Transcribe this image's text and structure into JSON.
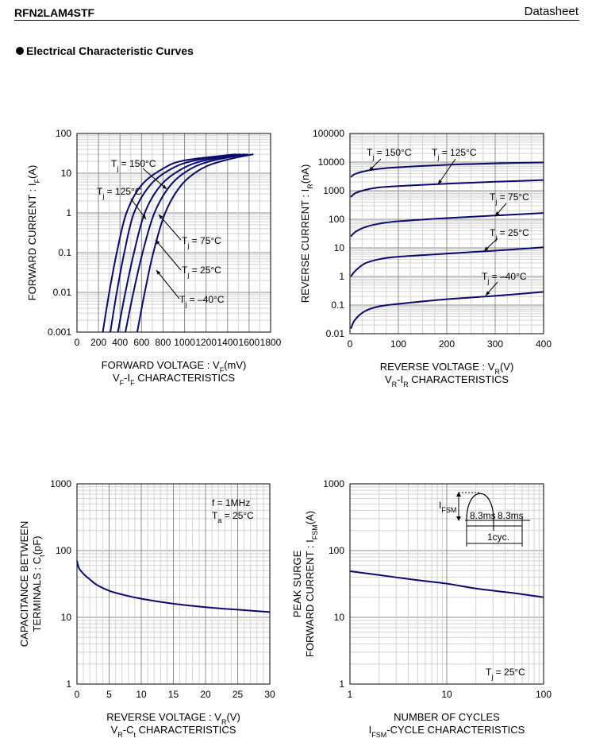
{
  "header": {
    "part_number": "RFN2LAM4STF",
    "doc_type": "Datasheet"
  },
  "section_title": "Electrical Characteristic Curves",
  "chart_data": [
    {
      "id": "vf-if",
      "type": "line",
      "title": "VF-IF CHARACTERISTICS",
      "xlabel": "FORWARD VOLTAGE : VF(mV)",
      "ylabel": "FORWARD CURRENT : IF(A)",
      "x_scale": "linear",
      "y_scale": "log",
      "xlim": [
        0,
        1800
      ],
      "ylim": [
        0.001,
        100
      ],
      "x_ticks": [
        "0",
        "200",
        "400",
        "600",
        "800",
        "1000",
        "1200",
        "1400",
        "1600",
        "1800"
      ],
      "y_ticks": [
        "0.001",
        "0.01",
        "0.1",
        "1",
        "10",
        "100"
      ],
      "grid": true,
      "series": [
        {
          "name": "Tj = 150°C",
          "points": [
            [
              240,
              0.001
            ],
            [
              300,
              0.01
            ],
            [
              370,
              0.1
            ],
            [
              460,
              1
            ],
            [
              600,
              5
            ],
            [
              800,
              13
            ],
            [
              1000,
              21
            ],
            [
              1480,
              30
            ]
          ]
        },
        {
          "name": "Tj = 125°C",
          "points": [
            [
              310,
              0.001
            ],
            [
              370,
              0.01
            ],
            [
              440,
              0.1
            ],
            [
              530,
              1
            ],
            [
              680,
              5
            ],
            [
              880,
              13
            ],
            [
              1100,
              21
            ],
            [
              1520,
              30
            ]
          ]
        },
        {
          "name": "Tj = 75°C",
          "points": [
            [
              380,
              0.001
            ],
            [
              450,
              0.01
            ],
            [
              530,
              0.1
            ],
            [
              630,
              1
            ],
            [
              780,
              5
            ],
            [
              980,
              13
            ],
            [
              1190,
              21
            ],
            [
              1560,
              30
            ]
          ]
        },
        {
          "name": "Tj = 25°C",
          "points": [
            [
              450,
              0.001
            ],
            [
              525,
              0.01
            ],
            [
              610,
              0.1
            ],
            [
              720,
              1
            ],
            [
              870,
              5
            ],
            [
              1060,
              13
            ],
            [
              1270,
              21
            ],
            [
              1590,
              30
            ]
          ]
        },
        {
          "name": "Tj = –40°C",
          "points": [
            [
              560,
              0.001
            ],
            [
              630,
              0.01
            ],
            [
              710,
              0.1
            ],
            [
              820,
              1
            ],
            [
              970,
              5
            ],
            [
              1160,
              13
            ],
            [
              1370,
              21
            ],
            [
              1640,
              30
            ]
          ]
        }
      ]
    },
    {
      "id": "vr-ir",
      "type": "line",
      "title": "VR-IR CHARACTERISTICS",
      "xlabel": "REVERSE VOLTAGE : VR(V)",
      "ylabel": "REVERSE CURRENT : IR(nA)",
      "x_scale": "linear",
      "y_scale": "log",
      "xlim": [
        0,
        400
      ],
      "ylim": [
        0.01,
        100000
      ],
      "x_ticks": [
        "0",
        "100",
        "200",
        "300",
        "400"
      ],
      "y_ticks": [
        "0.01",
        "0.1",
        "1",
        "10",
        "100",
        "1000",
        "10000",
        "100000"
      ],
      "grid": true,
      "series": [
        {
          "name": "Tj = 150°C",
          "points": [
            [
              2,
              3000
            ],
            [
              10,
              3800
            ],
            [
              30,
              4800
            ],
            [
              60,
              5800
            ],
            [
              100,
              6600
            ],
            [
              200,
              8000
            ],
            [
              300,
              9000
            ],
            [
              400,
              9800
            ]
          ]
        },
        {
          "name": "Tj = 125°C",
          "points": [
            [
              2,
              600
            ],
            [
              10,
              800
            ],
            [
              30,
              1050
            ],
            [
              60,
              1300
            ],
            [
              100,
              1450
            ],
            [
              200,
              1750
            ],
            [
              300,
              2050
            ],
            [
              400,
              2350
            ]
          ]
        },
        {
          "name": "Tj = 75°C",
          "points": [
            [
              2,
              25
            ],
            [
              10,
              35
            ],
            [
              30,
              52
            ],
            [
              60,
              70
            ],
            [
              100,
              85
            ],
            [
              200,
              110
            ],
            [
              300,
              135
            ],
            [
              400,
              165
            ]
          ]
        },
        {
          "name": "Tj = 25°C",
          "points": [
            [
              2,
              1
            ],
            [
              10,
              1.5
            ],
            [
              30,
              2.8
            ],
            [
              60,
              4
            ],
            [
              100,
              4.9
            ],
            [
              200,
              6.3
            ],
            [
              300,
              8
            ],
            [
              400,
              10.5
            ]
          ]
        },
        {
          "name": "Tj = –40°C",
          "points": [
            [
              2,
              0.015
            ],
            [
              10,
              0.03
            ],
            [
              30,
              0.06
            ],
            [
              60,
              0.09
            ],
            [
              100,
              0.11
            ],
            [
              200,
              0.16
            ],
            [
              300,
              0.21
            ],
            [
              400,
              0.29
            ]
          ]
        }
      ]
    },
    {
      "id": "vr-ct",
      "type": "line",
      "title": "VR-Ct CHARACTERISTICS",
      "xlabel": "REVERSE VOLTAGE : VR(V)",
      "ylabel": "CAPACITANCE BETWEEN TERMINALS : Ct(pF)",
      "x_scale": "linear",
      "y_scale": "log",
      "xlim": [
        0,
        30
      ],
      "ylim": [
        1,
        1000
      ],
      "x_ticks": [
        "0",
        "5",
        "10",
        "15",
        "20",
        "25",
        "30"
      ],
      "y_ticks": [
        "1",
        "10",
        "100",
        "1000"
      ],
      "grid": true,
      "conditions": [
        "f = 1MHz",
        "Ta = 25°C"
      ],
      "series": [
        {
          "name": "",
          "points": [
            [
              0,
              70
            ],
            [
              0.3,
              55
            ],
            [
              1,
              45
            ],
            [
              2,
              37
            ],
            [
              3,
              31
            ],
            [
              5,
              25
            ],
            [
              7,
              22
            ],
            [
              10,
              19
            ],
            [
              15,
              16
            ],
            [
              20,
              14.2
            ],
            [
              25,
              13
            ],
            [
              30,
              12
            ]
          ]
        }
      ]
    },
    {
      "id": "ifsm-cycle",
      "type": "line",
      "title": "IFSM-CYCLE CHARACTERISTICS",
      "xlabel": "NUMBER OF CYCLES",
      "ylabel": "PEAK SURGE FORWARD CURRENT : IFSM(A)",
      "x_scale": "log",
      "y_scale": "log",
      "xlim": [
        1,
        100
      ],
      "ylim": [
        1,
        1000
      ],
      "x_ticks": [
        "1",
        "10",
        "100"
      ],
      "y_ticks": [
        "1",
        "10",
        "100",
        "1000"
      ],
      "grid": true,
      "conditions": [
        "Tj = 25°C"
      ],
      "inset": {
        "ifsm_label": "IFSM",
        "half_cycle_1": "8.3ms",
        "half_cycle_2": "8.3ms",
        "period": "1cyc."
      },
      "series": [
        {
          "name": "",
          "points": [
            [
              1,
              49
            ],
            [
              2,
              43
            ],
            [
              5,
              36
            ],
            [
              10,
              32
            ],
            [
              20,
              27
            ],
            [
              50,
              23
            ],
            [
              100,
              20
            ]
          ]
        }
      ]
    }
  ]
}
